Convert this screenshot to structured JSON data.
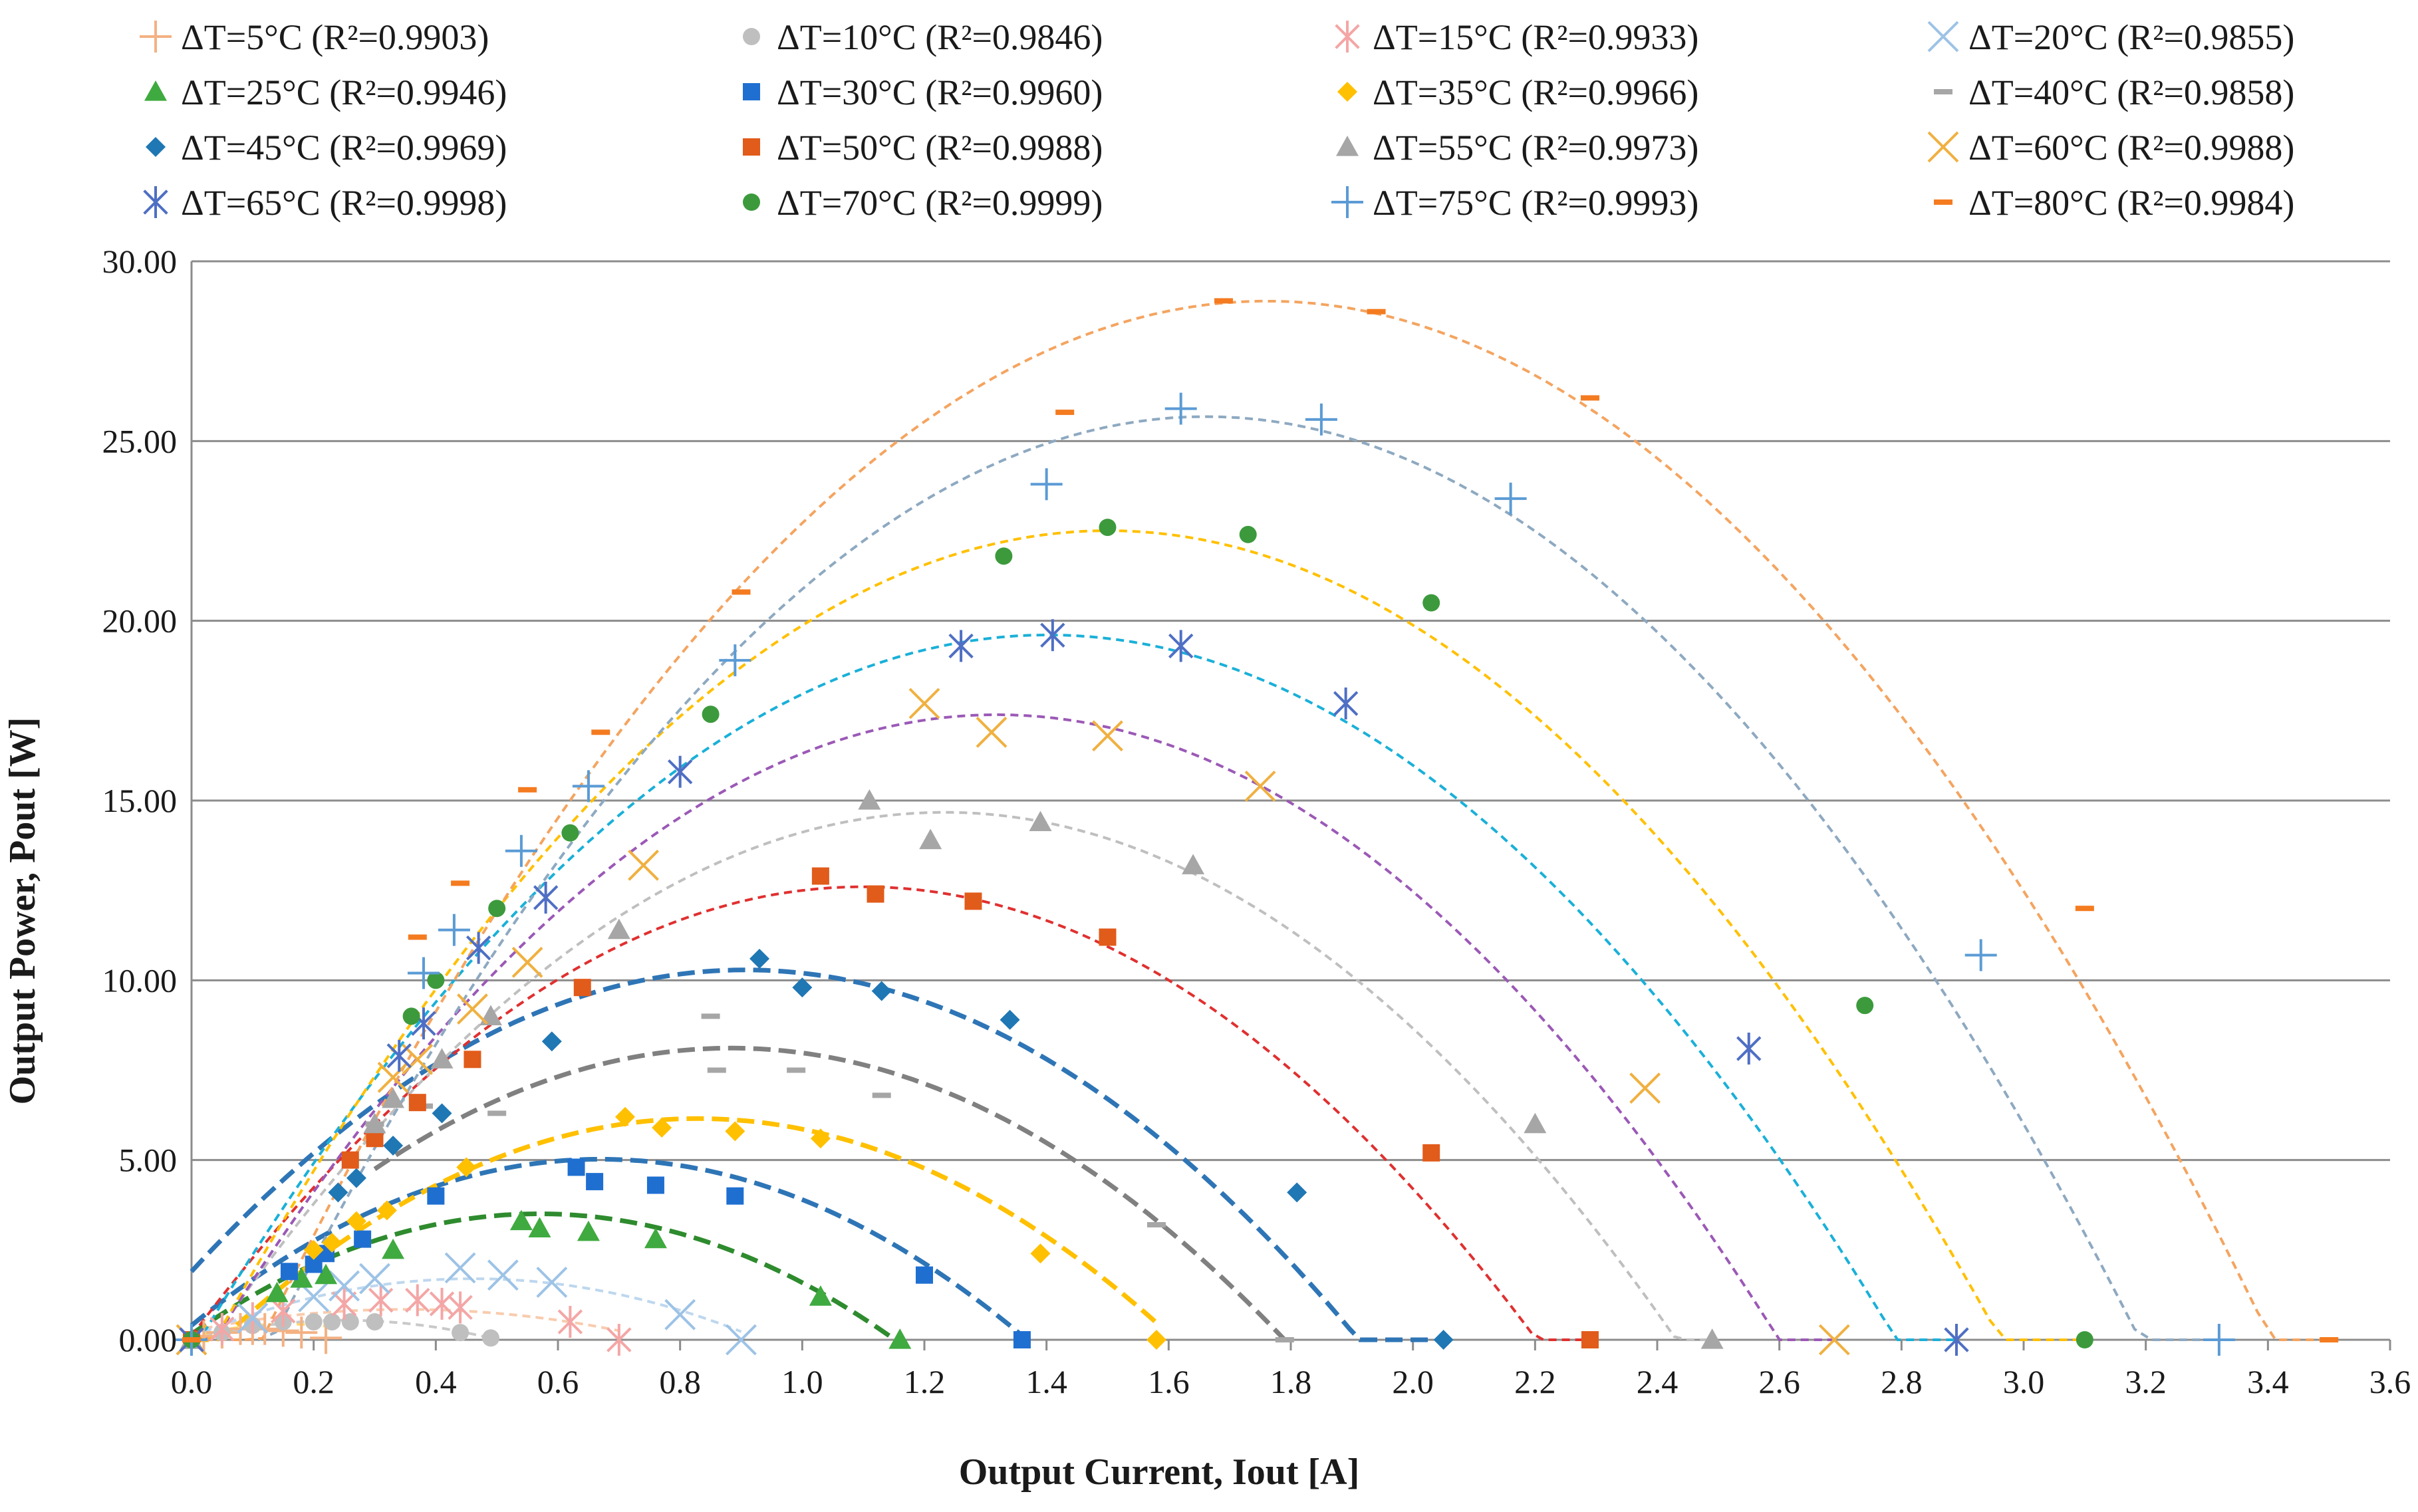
{
  "chart_data": {
    "type": "scatter",
    "title": "",
    "xlabel": "Output Current, Iout [A]",
    "ylabel": "Output Power, Pout  [W]",
    "xlim": [
      0,
      3.6
    ],
    "ylim": [
      0,
      30
    ],
    "x_ticks": [
      "0.0",
      "0.2",
      "0.4",
      "0.6",
      "0.8",
      "1.0",
      "1.2",
      "1.4",
      "1.6",
      "1.8",
      "2.0",
      "2.2",
      "2.4",
      "2.6",
      "2.8",
      "3.0",
      "3.2",
      "3.4",
      "3.6"
    ],
    "y_ticks": [
      "0.00",
      "5.00",
      "10.00",
      "15.00",
      "20.00",
      "25.00",
      "30.00"
    ],
    "grid": "horizontal",
    "legend_position": "top",
    "series": [
      {
        "name": "ΔT=5°C (R²=0.9903)",
        "marker": "plus",
        "color": "#f4b183",
        "fit_color": "#ffd966",
        "fit": {
          "a": -15.0,
          "b": 4.7,
          "c": 0.07
        },
        "x": [
          0,
          0.02,
          0.05,
          0.08,
          0.1,
          0.12,
          0.15,
          0.18,
          0.22
        ],
        "y": [
          0,
          0.1,
          0.2,
          0.3,
          0.3,
          0.3,
          0.25,
          0.2,
          0.05
        ]
      },
      {
        "name": "ΔT=10°C (R²=0.9846)",
        "marker": "circle",
        "color": "#bfbfbf",
        "fit_color": "#c9c9c9",
        "fit": {
          "a": -8.7,
          "b": 4.35,
          "c": 0
        },
        "x": [
          0,
          0.05,
          0.1,
          0.15,
          0.2,
          0.23,
          0.26,
          0.3,
          0.44,
          0.49
        ],
        "y": [
          0,
          0.2,
          0.4,
          0.5,
          0.5,
          0.5,
          0.5,
          0.5,
          0.2,
          0.05
        ]
      },
      {
        "name": "ΔT=15°C (R²=0.9933)",
        "marker": "asterisk",
        "color": "#f4a6a6",
        "fit_color": "#f8cbad",
        "fit": {
          "a": -4.85,
          "b": 3.4,
          "c": 0.25
        },
        "x": [
          0,
          0.05,
          0.1,
          0.15,
          0.25,
          0.31,
          0.37,
          0.41,
          0.44,
          0.62,
          0.7
        ],
        "y": [
          0,
          0.3,
          0.6,
          0.8,
          1.0,
          1.1,
          1.1,
          1.0,
          0.9,
          0.5,
          0
        ]
      },
      {
        "name": "ΔT=20°C (R²=0.9855)",
        "marker": "x",
        "color": "#9dc3e6",
        "fit_color": "#bdd7ee",
        "fit": {
          "a": -7.63,
          "b": 7.03,
          "c": 0.08
        },
        "x": [
          0,
          0.1,
          0.2,
          0.25,
          0.3,
          0.44,
          0.51,
          0.59,
          0.8,
          0.9
        ],
        "y": [
          0,
          0.6,
          1.2,
          1.5,
          1.7,
          2.0,
          1.8,
          1.6,
          0.7,
          0
        ]
      },
      {
        "name": "ΔT=25°C (R²=0.9946)",
        "marker": "triangle",
        "color": "#3faa3f",
        "fit_color": "#2e8b2e",
        "fit": {
          "a": -10.32,
          "b": 11.75,
          "c": 0.16
        },
        "x": [
          0,
          0.14,
          0.18,
          0.22,
          0.33,
          0.54,
          0.57,
          0.65,
          0.76,
          1.03,
          1.16
        ],
        "y": [
          0,
          1.3,
          1.7,
          1.8,
          2.5,
          3.3,
          3.1,
          3.0,
          2.8,
          1.2,
          0
        ]
      },
      {
        "name": "ΔT=30°C (R²=0.9960)",
        "marker": "square",
        "color": "#1f6fd1",
        "fit_color": "#2e75b6",
        "fit": {
          "a": -10.3,
          "b": 13.8,
          "c": 0.4
        },
        "x": [
          0,
          0.16,
          0.2,
          0.22,
          0.28,
          0.4,
          0.63,
          0.66,
          0.76,
          0.89,
          1.2,
          1.36
        ],
        "y": [
          0,
          1.9,
          2.1,
          2.4,
          2.8,
          4.0,
          4.8,
          4.4,
          4.3,
          4.0,
          1.8,
          0
        ]
      },
      {
        "name": "ΔT=35°C (R²=0.9966)",
        "marker": "diamond",
        "color": "#ffc000",
        "fit_color": "#ffc000",
        "fit": {
          "a": -10.08,
          "b": 16.72,
          "c": -0.78
        },
        "x": [
          0,
          0.2,
          0.23,
          0.27,
          0.32,
          0.45,
          0.71,
          0.77,
          0.89,
          1.03,
          1.39,
          1.58
        ],
        "y": [
          0,
          2.5,
          2.7,
          3.3,
          3.6,
          4.8,
          6.2,
          5.9,
          5.8,
          5.6,
          2.4,
          0
        ]
      },
      {
        "name": "ΔT=40°C (R²=0.9858)",
        "marker": "dash",
        "color": "#a6a6a6",
        "fit_color": "#808080",
        "fit": {
          "a": -9.88,
          "b": 17.46,
          "c": 0.4
        },
        "x": [
          0.3,
          0.38,
          0.5,
          0.85,
          0.86,
          0.99,
          1.13,
          1.58,
          1.79
        ],
        "y": [
          6.0,
          6.5,
          6.3,
          9.0,
          7.5,
          7.5,
          6.8,
          3.2,
          0
        ]
      },
      {
        "name": "ΔT=45°C (R²=0.9969)",
        "marker": "diamond",
        "color": "#1f77b4",
        "fit_color": "#2e75b6",
        "fit": {
          "a": -10.2,
          "b": 18.5,
          "c": 1.9
        },
        "x": [
          0,
          0.24,
          0.27,
          0.33,
          0.41,
          0.59,
          0.93,
          1.0,
          1.13,
          1.34,
          1.81,
          2.05
        ],
        "y": [
          0,
          4.1,
          4.5,
          5.4,
          6.3,
          8.3,
          10.6,
          9.8,
          9.7,
          8.9,
          4.1,
          0
        ]
      },
      {
        "name": "ΔT=50°C (R²=0.9988)",
        "marker": "square",
        "color": "#e15b1a",
        "fit_color": "#e03030",
        "fit": {
          "a": -10.35,
          "b": 22.75,
          "c": 0.1
        },
        "x": [
          0,
          0.26,
          0.3,
          0.37,
          0.46,
          0.64,
          1.03,
          1.12,
          1.28,
          1.5,
          2.03,
          2.29
        ],
        "y": [
          0,
          5.0,
          5.6,
          6.6,
          7.8,
          9.8,
          12.9,
          12.4,
          12.2,
          11.2,
          5.2,
          0
        ]
      },
      {
        "name": "ΔT=55°C (R²=0.9973)",
        "marker": "triangle",
        "color": "#a6a6a6",
        "fit_color": "#bfbfbf",
        "fit": {
          "a": -10.21,
          "b": 25.17,
          "c": -0.84
        },
        "x": [
          0,
          0.3,
          0.33,
          0.41,
          0.49,
          0.7,
          1.11,
          1.21,
          1.39,
          1.64,
          2.2,
          2.49
        ],
        "y": [
          0,
          6.0,
          6.7,
          7.8,
          9.0,
          11.4,
          15.0,
          13.9,
          14.4,
          13.2,
          6.0,
          0
        ]
      },
      {
        "name": "ΔT=60°C (R²=0.9988)",
        "marker": "x",
        "color": "#f0b040",
        "fit_color": "#9b59b6",
        "fit": {
          "a": -10.6,
          "b": 27.96,
          "c": -1.05
        },
        "x": [
          0,
          0.33,
          0.37,
          0.46,
          0.55,
          0.74,
          1.2,
          1.31,
          1.5,
          1.75,
          2.38,
          2.69
        ],
        "y": [
          0,
          7.3,
          7.8,
          9.2,
          10.5,
          13.2,
          17.7,
          16.9,
          16.8,
          15.4,
          7.0,
          0
        ]
      },
      {
        "name": "ΔT=65°C (R²=0.9998)",
        "marker": "asterisk",
        "color": "#4f6fc4",
        "fit_color": "#1ab0d8",
        "fit": {
          "a": -10.16,
          "b": 28.5,
          "c": -0.38
        },
        "x": [
          0,
          0.34,
          0.38,
          0.47,
          0.58,
          0.8,
          1.26,
          1.41,
          1.62,
          1.89,
          2.55,
          2.89
        ],
        "y": [
          0,
          7.9,
          8.8,
          10.9,
          12.3,
          15.8,
          19.3,
          19.6,
          19.3,
          17.7,
          8.1,
          0
        ]
      },
      {
        "name": "ΔT=70°C (R²=0.9999)",
        "marker": "circle",
        "color": "#3c9a3c",
        "fit_color": "#ffc000",
        "fit": {
          "a": -10.53,
          "b": 31.6,
          "c": -1.2
        },
        "x": [
          0,
          0.36,
          0.4,
          0.5,
          0.62,
          0.85,
          1.33,
          1.5,
          1.73,
          2.03,
          2.74,
          3.1
        ],
        "y": [
          0,
          9.0,
          10.0,
          12.0,
          14.1,
          17.4,
          21.8,
          22.6,
          22.4,
          20.5,
          9.3,
          0
        ]
      },
      {
        "name": "ΔT=75°C (R²=0.9993)",
        "marker": "plus",
        "color": "#5b9bd5",
        "fit_color": "#8ea9c1",
        "fit": {
          "a": -10.98,
          "b": 36.48,
          "c": -4.62
        },
        "x": [
          0,
          0.38,
          0.43,
          0.54,
          0.65,
          0.89,
          1.4,
          1.62,
          1.85,
          2.16,
          2.93,
          3.32
        ],
        "y": [
          0,
          10.2,
          11.4,
          13.6,
          15.4,
          18.9,
          23.8,
          25.9,
          25.6,
          23.4,
          10.7,
          0
        ]
      },
      {
        "name": "ΔT=80°C (R²=0.9984)",
        "marker": "dash",
        "color": "#f47b20",
        "fit_color": "#f4a460",
        "fit": {
          "a": -10.68,
          "b": 37.6,
          "c": -4.2
        },
        "x": [
          0,
          0.37,
          0.44,
          0.55,
          0.67,
          0.9,
          1.43,
          1.69,
          1.94,
          2.29,
          3.1,
          3.5
        ],
        "y": [
          0,
          11.2,
          12.7,
          15.3,
          16.9,
          20.8,
          25.8,
          28.9,
          28.6,
          26.2,
          12.0,
          0
        ]
      }
    ]
  }
}
